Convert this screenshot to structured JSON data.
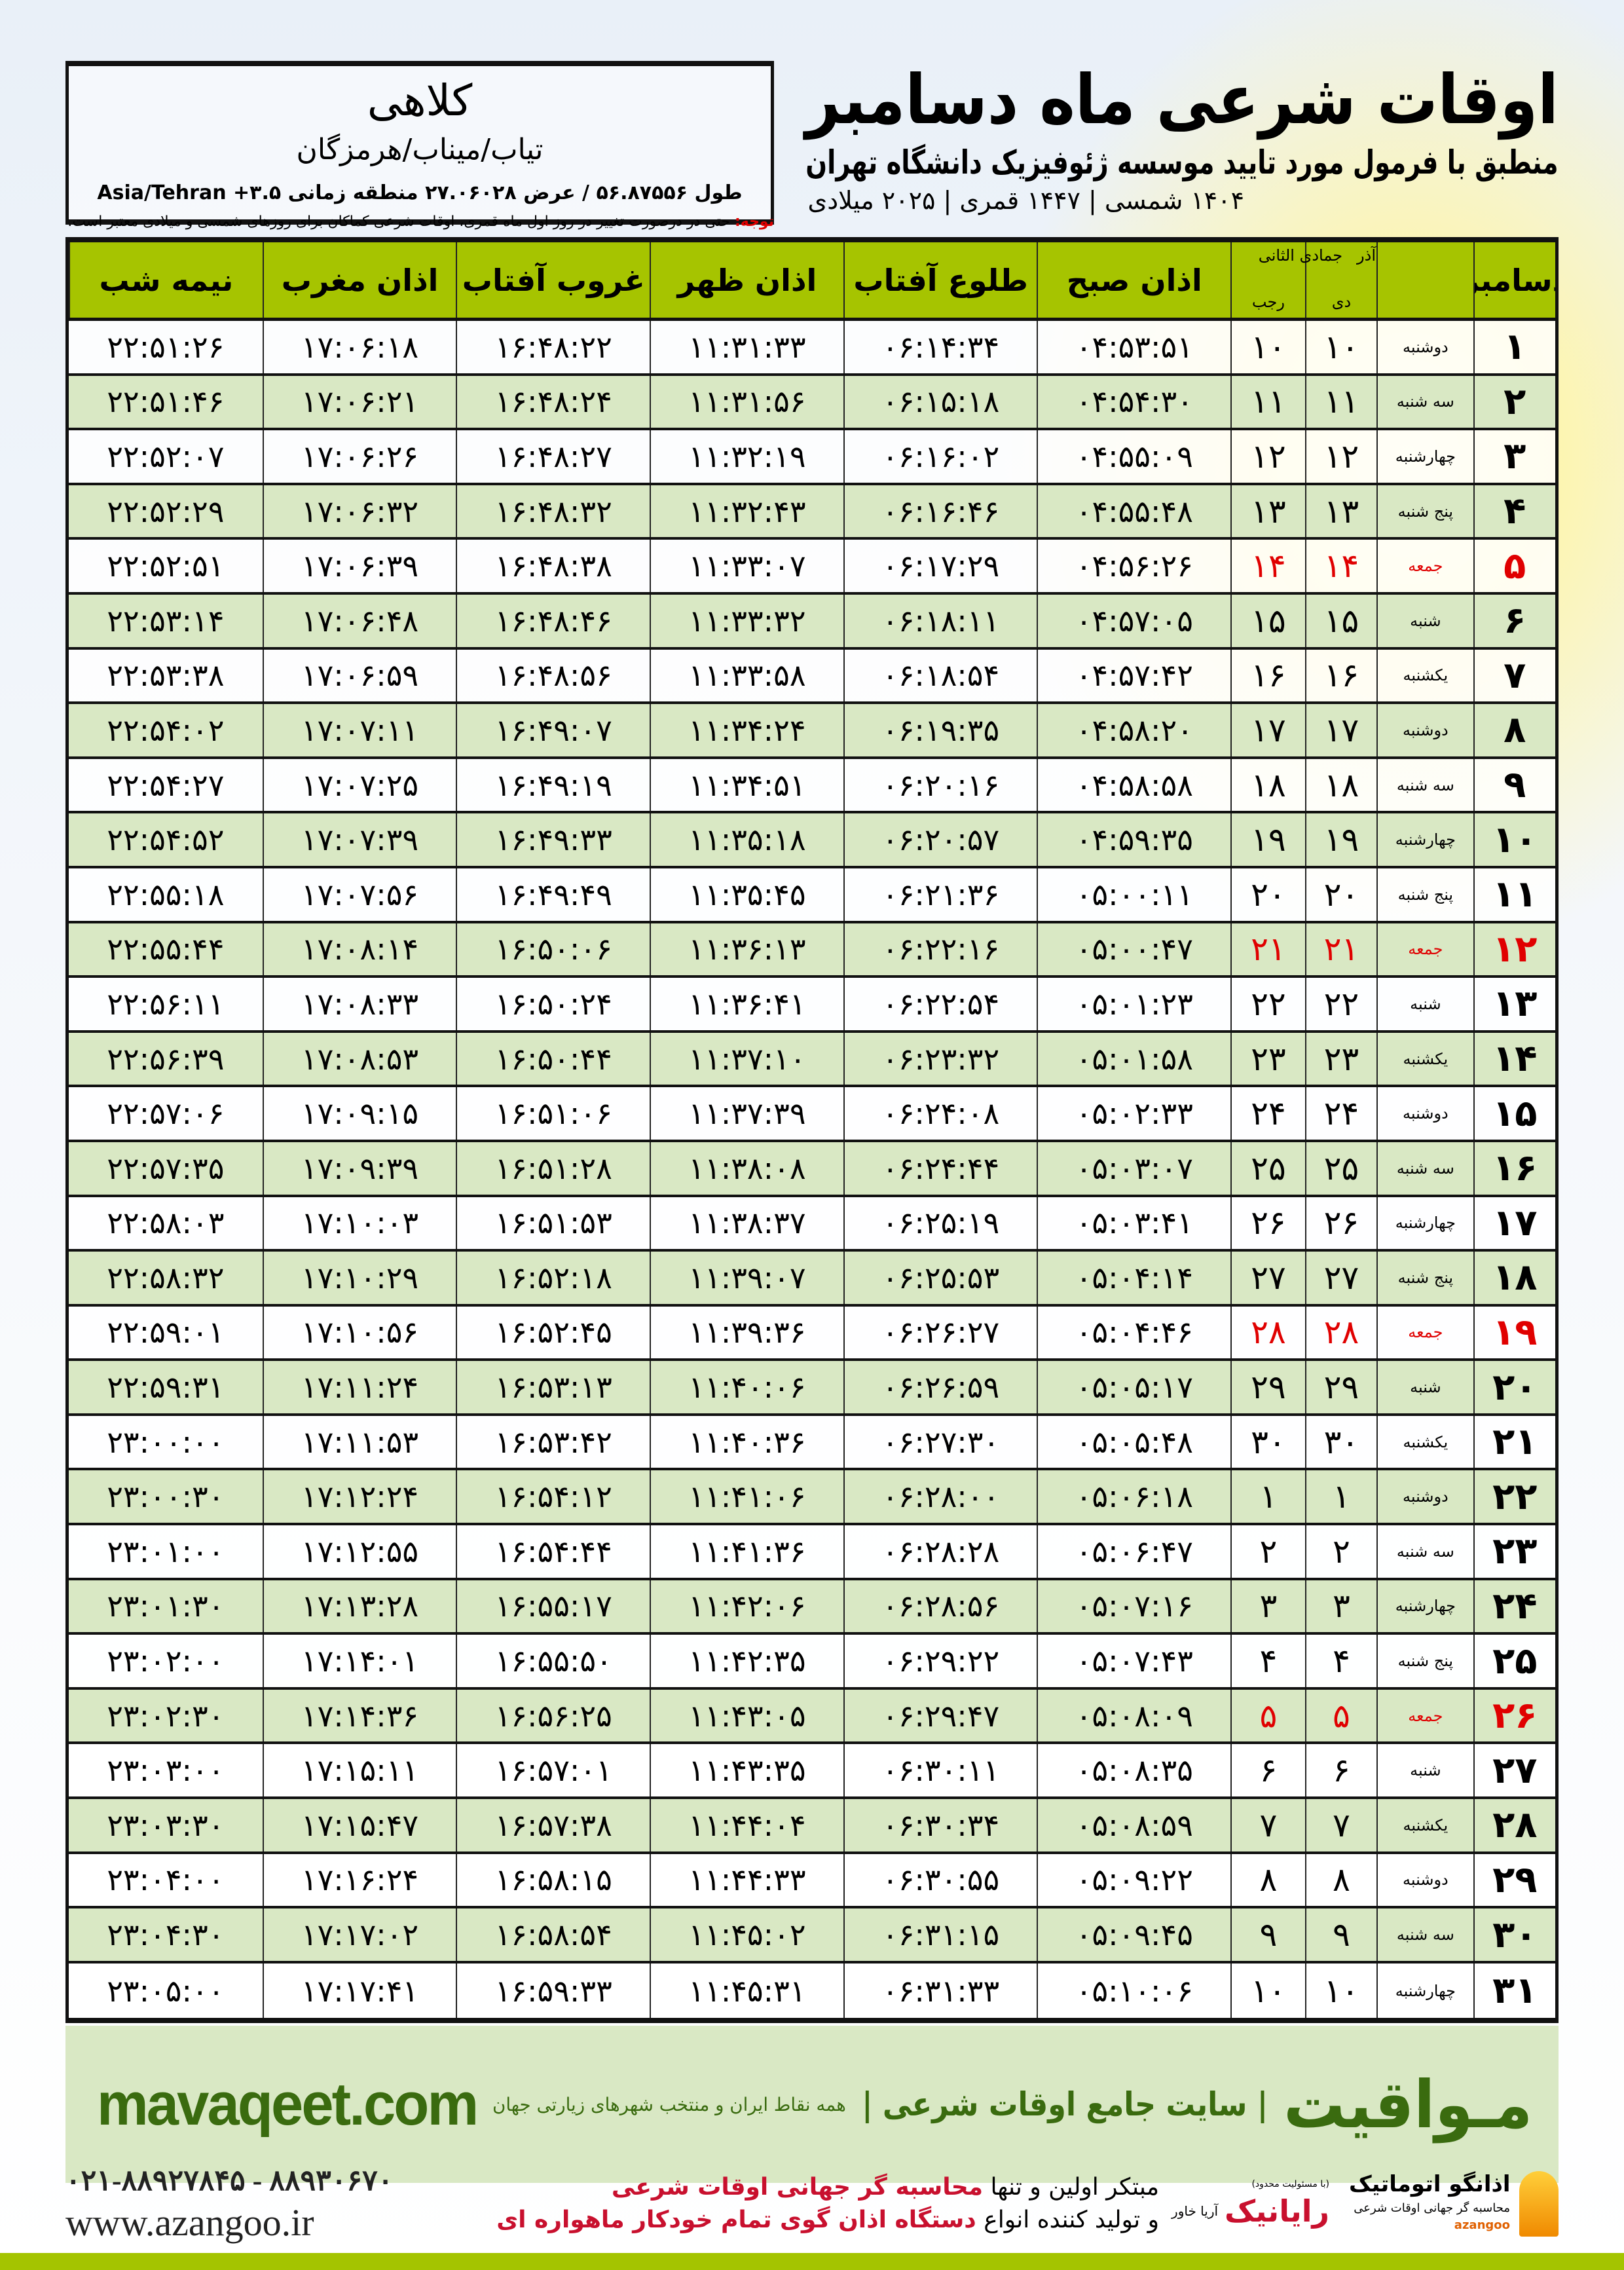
{
  "header": {
    "title": "اوقات شرعی ماه دسامبر",
    "subtitle": "منطبق با فرمول مورد تایید موسسه ژئوفیزیک دانشگاه تهران",
    "years": "۱۴۰۴ شمسی | ۱۴۴۷ قمری | ۲۰۲۵ میلادی"
  },
  "city": {
    "name": "کلاهی",
    "region": "تیاب/میناب/هرمزگان",
    "coords": "طول ۵۶.۸۷۵۵۶ / عرض ۲۷.۰۶۰۲۸ منطقه زمانی ۳.۵+ Asia/Tehran"
  },
  "note": {
    "label": "توجه:",
    "text": " حتی در درصورت تغییر در روز اول ماه قمری، اوقات شرعی کماکان برای روزهای شمسی و میلادی معتبر است."
  },
  "table": {
    "headers": {
      "day": "دسامبر",
      "shamsi_top": "آذر",
      "shamsi_bottom": "دی",
      "hijri_top": "جمادی الثانی",
      "hijri_bottom": "رجب",
      "sobh": "اذان صبح",
      "tolu": "طلوع آفتاب",
      "zohr": "اذان ظهر",
      "ghurub": "غروب آفتاب",
      "maghrib": "اذان مغرب",
      "nime": "نیمه شب"
    },
    "highlight_color": "#e00000",
    "rows": [
      [
        "۱",
        "دوشنبه",
        "۱۰",
        "۱۰",
        "۰۴:۵۳:۵۱",
        "۰۶:۱۴:۳۴",
        "۱۱:۳۱:۳۳",
        "۱۶:۴۸:۲۲",
        "۱۷:۰۶:۱۸",
        "۲۲:۵۱:۲۶"
      ],
      [
        "۲",
        "سه شنبه",
        "۱۱",
        "۱۱",
        "۰۴:۵۴:۳۰",
        "۰۶:۱۵:۱۸",
        "۱۱:۳۱:۵۶",
        "۱۶:۴۸:۲۴",
        "۱۷:۰۶:۲۱",
        "۲۲:۵۱:۴۶"
      ],
      [
        "۳",
        "چهارشنبه",
        "۱۲",
        "۱۲",
        "۰۴:۵۵:۰۹",
        "۰۶:۱۶:۰۲",
        "۱۱:۳۲:۱۹",
        "۱۶:۴۸:۲۷",
        "۱۷:۰۶:۲۶",
        "۲۲:۵۲:۰۷"
      ],
      [
        "۴",
        "پنج شنبه",
        "۱۳",
        "۱۳",
        "۰۴:۵۵:۴۸",
        "۰۶:۱۶:۴۶",
        "۱۱:۳۲:۴۳",
        "۱۶:۴۸:۳۲",
        "۱۷:۰۶:۳۲",
        "۲۲:۵۲:۲۹"
      ],
      [
        "۵",
        "جمعه",
        "۱۴",
        "۱۴",
        "۰۴:۵۶:۲۶",
        "۰۶:۱۷:۲۹",
        "۱۱:۳۳:۰۷",
        "۱۶:۴۸:۳۸",
        "۱۷:۰۶:۳۹",
        "۲۲:۵۲:۵۱"
      ],
      [
        "۶",
        "شنبه",
        "۱۵",
        "۱۵",
        "۰۴:۵۷:۰۵",
        "۰۶:۱۸:۱۱",
        "۱۱:۳۳:۳۲",
        "۱۶:۴۸:۴۶",
        "۱۷:۰۶:۴۸",
        "۲۲:۵۳:۱۴"
      ],
      [
        "۷",
        "یکشنبه",
        "۱۶",
        "۱۶",
        "۰۴:۵۷:۴۲",
        "۰۶:۱۸:۵۴",
        "۱۱:۳۳:۵۸",
        "۱۶:۴۸:۵۶",
        "۱۷:۰۶:۵۹",
        "۲۲:۵۳:۳۸"
      ],
      [
        "۸",
        "دوشنبه",
        "۱۷",
        "۱۷",
        "۰۴:۵۸:۲۰",
        "۰۶:۱۹:۳۵",
        "۱۱:۳۴:۲۴",
        "۱۶:۴۹:۰۷",
        "۱۷:۰۷:۱۱",
        "۲۲:۵۴:۰۲"
      ],
      [
        "۹",
        "سه شنبه",
        "۱۸",
        "۱۸",
        "۰۴:۵۸:۵۸",
        "۰۶:۲۰:۱۶",
        "۱۱:۳۴:۵۱",
        "۱۶:۴۹:۱۹",
        "۱۷:۰۷:۲۵",
        "۲۲:۵۴:۲۷"
      ],
      [
        "۱۰",
        "چهارشنبه",
        "۱۹",
        "۱۹",
        "۰۴:۵۹:۳۵",
        "۰۶:۲۰:۵۷",
        "۱۱:۳۵:۱۸",
        "۱۶:۴۹:۳۳",
        "۱۷:۰۷:۳۹",
        "۲۲:۵۴:۵۲"
      ],
      [
        "۱۱",
        "پنج شنبه",
        "۲۰",
        "۲۰",
        "۰۵:۰۰:۱۱",
        "۰۶:۲۱:۳۶",
        "۱۱:۳۵:۴۵",
        "۱۶:۴۹:۴۹",
        "۱۷:۰۷:۵۶",
        "۲۲:۵۵:۱۸"
      ],
      [
        "۱۲",
        "جمعه",
        "۲۱",
        "۲۱",
        "۰۵:۰۰:۴۷",
        "۰۶:۲۲:۱۶",
        "۱۱:۳۶:۱۳",
        "۱۶:۵۰:۰۶",
        "۱۷:۰۸:۱۴",
        "۲۲:۵۵:۴۴"
      ],
      [
        "۱۳",
        "شنبه",
        "۲۲",
        "۲۲",
        "۰۵:۰۱:۲۳",
        "۰۶:۲۲:۵۴",
        "۱۱:۳۶:۴۱",
        "۱۶:۵۰:۲۴",
        "۱۷:۰۸:۳۳",
        "۲۲:۵۶:۱۱"
      ],
      [
        "۱۴",
        "یکشنبه",
        "۲۳",
        "۲۳",
        "۰۵:۰۱:۵۸",
        "۰۶:۲۳:۳۲",
        "۱۱:۳۷:۱۰",
        "۱۶:۵۰:۴۴",
        "۱۷:۰۸:۵۳",
        "۲۲:۵۶:۳۹"
      ],
      [
        "۱۵",
        "دوشنبه",
        "۲۴",
        "۲۴",
        "۰۵:۰۲:۳۳",
        "۰۶:۲۴:۰۸",
        "۱۱:۳۷:۳۹",
        "۱۶:۵۱:۰۶",
        "۱۷:۰۹:۱۵",
        "۲۲:۵۷:۰۶"
      ],
      [
        "۱۶",
        "سه شنبه",
        "۲۵",
        "۲۵",
        "۰۵:۰۳:۰۷",
        "۰۶:۲۴:۴۴",
        "۱۱:۳۸:۰۸",
        "۱۶:۵۱:۲۸",
        "۱۷:۰۹:۳۹",
        "۲۲:۵۷:۳۵"
      ],
      [
        "۱۷",
        "چهارشنبه",
        "۲۶",
        "۲۶",
        "۰۵:۰۳:۴۱",
        "۰۶:۲۵:۱۹",
        "۱۱:۳۸:۳۷",
        "۱۶:۵۱:۵۳",
        "۱۷:۱۰:۰۳",
        "۲۲:۵۸:۰۳"
      ],
      [
        "۱۸",
        "پنج شنبه",
        "۲۷",
        "۲۷",
        "۰۵:۰۴:۱۴",
        "۰۶:۲۵:۵۳",
        "۱۱:۳۹:۰۷",
        "۱۶:۵۲:۱۸",
        "۱۷:۱۰:۲۹",
        "۲۲:۵۸:۳۲"
      ],
      [
        "۱۹",
        "جمعه",
        "۲۸",
        "۲۸",
        "۰۵:۰۴:۴۶",
        "۰۶:۲۶:۲۷",
        "۱۱:۳۹:۳۶",
        "۱۶:۵۲:۴۵",
        "۱۷:۱۰:۵۶",
        "۲۲:۵۹:۰۱"
      ],
      [
        "۲۰",
        "شنبه",
        "۲۹",
        "۲۹",
        "۰۵:۰۵:۱۷",
        "۰۶:۲۶:۵۹",
        "۱۱:۴۰:۰۶",
        "۱۶:۵۳:۱۳",
        "۱۷:۱۱:۲۴",
        "۲۲:۵۹:۳۱"
      ],
      [
        "۲۱",
        "یکشنبه",
        "۳۰",
        "۳۰",
        "۰۵:۰۵:۴۸",
        "۰۶:۲۷:۳۰",
        "۱۱:۴۰:۳۶",
        "۱۶:۵۳:۴۲",
        "۱۷:۱۱:۵۳",
        "۲۳:۰۰:۰۰"
      ],
      [
        "۲۲",
        "دوشنبه",
        "۱",
        "۱",
        "۰۵:۰۶:۱۸",
        "۰۶:۲۸:۰۰",
        "۱۱:۴۱:۰۶",
        "۱۶:۵۴:۱۲",
        "۱۷:۱۲:۲۴",
        "۲۳:۰۰:۳۰"
      ],
      [
        "۲۳",
        "سه شنبه",
        "۲",
        "۲",
        "۰۵:۰۶:۴۷",
        "۰۶:۲۸:۲۸",
        "۱۱:۴۱:۳۶",
        "۱۶:۵۴:۴۴",
        "۱۷:۱۲:۵۵",
        "۲۳:۰۱:۰۰"
      ],
      [
        "۲۴",
        "چهارشنبه",
        "۳",
        "۳",
        "۰۵:۰۷:۱۶",
        "۰۶:۲۸:۵۶",
        "۱۱:۴۲:۰۶",
        "۱۶:۵۵:۱۷",
        "۱۷:۱۳:۲۸",
        "۲۳:۰۱:۳۰"
      ],
      [
        "۲۵",
        "پنج شنبه",
        "۴",
        "۴",
        "۰۵:۰۷:۴۳",
        "۰۶:۲۹:۲۲",
        "۱۱:۴۲:۳۵",
        "۱۶:۵۵:۵۰",
        "۱۷:۱۴:۰۱",
        "۲۳:۰۲:۰۰"
      ],
      [
        "۲۶",
        "جمعه",
        "۵",
        "۵",
        "۰۵:۰۸:۰۹",
        "۰۶:۲۹:۴۷",
        "۱۱:۴۳:۰۵",
        "۱۶:۵۶:۲۵",
        "۱۷:۱۴:۳۶",
        "۲۳:۰۲:۳۰"
      ],
      [
        "۲۷",
        "شنبه",
        "۶",
        "۶",
        "۰۵:۰۸:۳۵",
        "۰۶:۳۰:۱۱",
        "۱۱:۴۳:۳۵",
        "۱۶:۵۷:۰۱",
        "۱۷:۱۵:۱۱",
        "۲۳:۰۳:۰۰"
      ],
      [
        "۲۸",
        "یکشنبه",
        "۷",
        "۷",
        "۰۵:۰۸:۵۹",
        "۰۶:۳۰:۳۴",
        "۱۱:۴۴:۰۴",
        "۱۶:۵۷:۳۸",
        "۱۷:۱۵:۴۷",
        "۲۳:۰۳:۳۰"
      ],
      [
        "۲۹",
        "دوشنبه",
        "۸",
        "۸",
        "۰۵:۰۹:۲۲",
        "۰۶:۳۰:۵۵",
        "۱۱:۴۴:۳۳",
        "۱۶:۵۸:۱۵",
        "۱۷:۱۶:۲۴",
        "۲۳:۰۴:۰۰"
      ],
      [
        "۳۰",
        "سه شنبه",
        "۹",
        "۹",
        "۰۵:۰۹:۴۵",
        "۰۶:۳۱:۱۵",
        "۱۱:۴۵:۰۲",
        "۱۶:۵۸:۵۴",
        "۱۷:۱۷:۰۲",
        "۲۳:۰۴:۳۰"
      ],
      [
        "۳۱",
        "چهارشنبه",
        "۱۰",
        "۱۰",
        "۰۵:۱۰:۰۶",
        "۰۶:۳۱:۳۳",
        "۱۱:۴۵:۳۱",
        "۱۶:۵۹:۳۳",
        "۱۷:۱۷:۴۱",
        "۲۳:۰۵:۰۰"
      ]
    ]
  },
  "footer": {
    "brand_fa": "مـواقیت",
    "tagline": "| سایت جامع اوقات شرعی |",
    "sub": "همه نقاط ایران و منتخب شهرهای زیارتی جهان",
    "brand_en": "mavaqeet.com",
    "brand_color": "#3a6b0f"
  },
  "contact": {
    "phone": "۰۲۱-۸۸۹۲۷۸۴۵ - ۸۸۹۳۰۶۷۰",
    "web": "www.azangoo.ir"
  },
  "promo": {
    "l1a": "مبتکر اولین و تنها ",
    "l1b": "محاسبه گر جهانی اوقات شرعی",
    "l2a": "و تولید کننده انواع ",
    "l2b": "دستگاه اذان گوی تمام خودکار ماهواره ای"
  },
  "logos": {
    "azangoo_name": "اذانگو اتوماتیک",
    "azangoo_sub": "محاسبه گر جهانی اوقات شرعی",
    "azangoo_en": "azangoo",
    "rayanik_small": "(با مسئولیت محدود)",
    "rayanik_name": "رایانیک",
    "rayanik_side": "آریا خاور"
  }
}
